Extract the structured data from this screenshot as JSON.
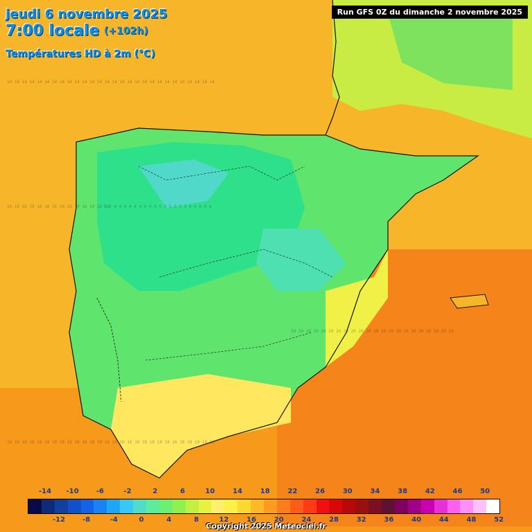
{
  "header": {
    "date": "jeudi 6 novembre 2025",
    "time": "7:00 locale",
    "lead": "(+102h)",
    "parameter": "Températures HD à 2m (°C)",
    "run": "Run GFS 0Z du dimanche 2 novembre 2025"
  },
  "copyright": "Copyright 2025 Meteociel.fr",
  "legend": {
    "top_labels": [
      "-14",
      "-10",
      "-6",
      "-2",
      "2",
      "6",
      "10",
      "14",
      "18",
      "22",
      "26",
      "30",
      "34",
      "38",
      "42",
      "46",
      "50"
    ],
    "bottom_labels": [
      "-12",
      "-8",
      "-4",
      "0",
      "4",
      "8",
      "12",
      "16",
      "20",
      "24",
      "28",
      "32",
      "36",
      "40",
      "44",
      "48",
      "52"
    ],
    "colors": [
      "#0a0a4a",
      "#0e2a7a",
      "#12409e",
      "#1050c8",
      "#1462e6",
      "#1a82f2",
      "#20a6f6",
      "#38c8f4",
      "#50dcc8",
      "#5cec9c",
      "#6cf070",
      "#90f050",
      "#c0f040",
      "#e8f040",
      "#fff06c",
      "#fff048",
      "#ffd830",
      "#ffb828",
      "#ff9c20",
      "#ff7c1c",
      "#ff5c18",
      "#ff3a14",
      "#f01010",
      "#d80808",
      "#b80808",
      "#981010",
      "#7c1020",
      "#601030",
      "#800060",
      "#a00088",
      "#c800b0",
      "#e830d8",
      "#ff60f0",
      "#ff90f8",
      "#ffc0ff",
      "#ffffff"
    ]
  }
}
